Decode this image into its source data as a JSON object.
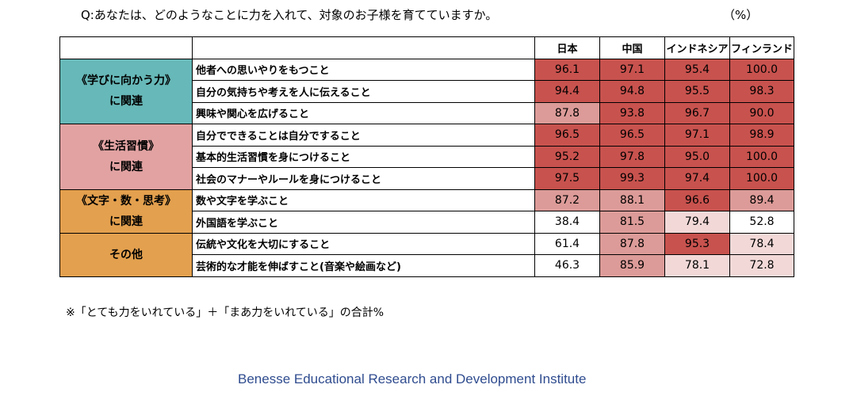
{
  "question": "Q:あなたは、どのようなことに力を入れて、対象のお子様を育てていますか。",
  "unit": "（%）",
  "note": "※「とても力をいれている」＋「まあ力をいれている」の合計%",
  "footer": "Benesse Educational Research and Development Institute",
  "colors": {
    "cat_learning": "#67b8b8",
    "cat_habits": "#e2a2a2",
    "cat_letters": "#e3a04e",
    "cat_other": "#e3a04e",
    "shade_high": "#c8524e",
    "shade_mid": "#dc9b98",
    "shade_low": "#f2d9d8",
    "shade_none": "#ffffff"
  },
  "chart_data": {
    "type": "table",
    "title": "Q:あなたは、どのようなことに力を入れて、対象のお子様を育てていますか。",
    "columns": [
      "日本",
      "中国",
      "インドネシア",
      "フィンランド"
    ],
    "categories": [
      {
        "label_lines": [
          "《学びに向かう力》",
          "に関連"
        ],
        "color_key": "cat_learning",
        "row_count": 3
      },
      {
        "label_lines": [
          "《生活習慣》",
          "に関連"
        ],
        "color_key": "cat_habits",
        "row_count": 3
      },
      {
        "label_lines": [
          "《文字・数・思考》",
          "に関連"
        ],
        "color_key": "cat_letters",
        "row_count": 2
      },
      {
        "label_lines": [
          "その他"
        ],
        "color_key": "cat_other",
        "row_count": 2
      }
    ],
    "rows": [
      {
        "item": "他者への思いやりをもつこと",
        "values": [
          "96.1",
          "97.1",
          "95.4",
          "100.0"
        ],
        "shades": [
          "high",
          "high",
          "high",
          "high"
        ]
      },
      {
        "item": "自分の気持ちや考えを人に伝えること",
        "values": [
          "94.4",
          "94.8",
          "95.5",
          "98.3"
        ],
        "shades": [
          "high",
          "high",
          "high",
          "high"
        ]
      },
      {
        "item": "興味や関心を広げること",
        "values": [
          "87.8",
          "93.8",
          "96.7",
          "90.0"
        ],
        "shades": [
          "mid",
          "high",
          "high",
          "high"
        ]
      },
      {
        "item": "自分でできることは自分ですること",
        "values": [
          "96.5",
          "96.5",
          "97.1",
          "98.9"
        ],
        "shades": [
          "high",
          "high",
          "high",
          "high"
        ]
      },
      {
        "item": "基本的生活習慣を身につけること",
        "values": [
          "95.2",
          "97.8",
          "95.0",
          "100.0"
        ],
        "shades": [
          "high",
          "high",
          "high",
          "high"
        ]
      },
      {
        "item": "社会のマナーやルールを身につけること",
        "values": [
          "97.5",
          "99.3",
          "97.4",
          "100.0"
        ],
        "shades": [
          "high",
          "high",
          "high",
          "high"
        ]
      },
      {
        "item": "数や文字を学ぶこと",
        "values": [
          "87.2",
          "88.1",
          "96.6",
          "89.4"
        ],
        "shades": [
          "mid",
          "mid",
          "high",
          "mid"
        ]
      },
      {
        "item": "外国語を学ぶこと",
        "values": [
          "38.4",
          "81.5",
          "79.4",
          "52.8"
        ],
        "shades": [
          "none",
          "mid",
          "low",
          "none"
        ]
      },
      {
        "item": "伝統や文化を大切にすること",
        "values": [
          "61.4",
          "87.8",
          "95.3",
          "78.4"
        ],
        "shades": [
          "none",
          "mid",
          "high",
          "low"
        ]
      },
      {
        "item": "芸術的な才能を伸ばすこと(音楽や絵画など)",
        "values": [
          "46.3",
          "85.9",
          "78.1",
          "72.8"
        ],
        "shades": [
          "none",
          "mid",
          "low",
          "low"
        ]
      }
    ]
  }
}
